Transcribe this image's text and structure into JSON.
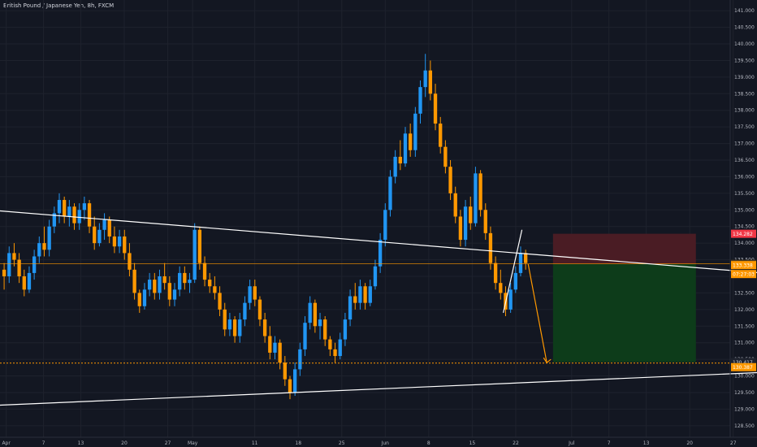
{
  "header": {
    "title": "British Pound / Japanese Yen, 8h, FXCM"
  },
  "chart_data": {
    "type": "candlestick",
    "symbol": "British Pound / Japanese Yen, 8h, FXCM",
    "ylim": [
      128.3,
      141.2
    ],
    "y_ticks": [
      "128.500",
      "129.000",
      "129.500",
      "130.000",
      "130.500",
      "131.000",
      "131.500",
      "132.000",
      "132.500",
      "133.000",
      "133.500",
      "134.000",
      "134.500",
      "135.000",
      "135.500",
      "136.000",
      "136.500",
      "137.000",
      "137.500",
      "138.000",
      "138.500",
      "139.000",
      "139.500",
      "140.000",
      "140.500",
      "141.000"
    ],
    "x_ticks": [
      "Apr",
      "7",
      "13",
      "20",
      "27",
      "May",
      "11",
      "18",
      "25",
      "Jun",
      "8",
      "15",
      "22",
      "Jul",
      "7",
      "13",
      "20",
      "27"
    ],
    "price_labels": {
      "stop_loss": "134.282",
      "current_price": "133.338",
      "countdown": "07:27:03",
      "entry_line": "133.374",
      "target": "130.417",
      "target_line": "130.387"
    },
    "colors": {
      "up": "#2196f3",
      "down": "#ff9800",
      "stop_zone": "#4a1c24",
      "target_zone": "#0d3c1a",
      "trendline": "#ffffff",
      "projection": "#ff9800",
      "price_line": "#ff9800"
    },
    "trendlines": [
      {
        "name": "descending-resistance",
        "from": {
          "date": "2020-03-31",
          "price": 134.97
        },
        "to": {
          "date": "2020-07-31",
          "price": 133.11
        }
      },
      {
        "name": "ascending-support",
        "from": {
          "date": "2020-03-31",
          "price": 129.12
        },
        "to": {
          "date": "2020-07-31",
          "price": 130.1
        }
      },
      {
        "name": "rising-wedge-edge",
        "from": {
          "date": "2020-06-20",
          "price": 131.9
        },
        "to": {
          "date": "2020-06-23",
          "price": 134.4
        }
      }
    ],
    "projection": [
      {
        "date": "2020-06-24",
        "price": 133.37
      },
      {
        "date": "2020-06-27",
        "price": 130.4
      }
    ],
    "position": {
      "entry": 133.374,
      "stop": 134.282,
      "target": 130.417,
      "start": "2020-06-28",
      "end": "2020-07-21"
    },
    "series": [
      {
        "values": [
          [
            133.2,
            133.4,
            132.6,
            133.0
          ],
          [
            133.0,
            133.9,
            132.8,
            133.7
          ],
          [
            133.7,
            134.0,
            133.3,
            133.5
          ],
          [
            133.5,
            133.7,
            132.8,
            133.0
          ],
          [
            133.0,
            133.2,
            132.4,
            132.6
          ],
          [
            132.6,
            133.3,
            132.5,
            133.1
          ],
          [
            133.1,
            133.8,
            132.9,
            133.6
          ],
          [
            133.6,
            134.2,
            133.4,
            134.0
          ],
          [
            134.0,
            134.5,
            133.6,
            133.8
          ],
          [
            133.8,
            134.7,
            133.6,
            134.5
          ],
          [
            134.5,
            135.1,
            134.3,
            134.9
          ],
          [
            134.9,
            135.5,
            134.6,
            135.3
          ],
          [
            135.3,
            135.4,
            134.6,
            134.8
          ],
          [
            134.8,
            135.3,
            134.5,
            135.1
          ],
          [
            135.1,
            135.2,
            134.4,
            134.6
          ],
          [
            134.6,
            135.2,
            134.4,
            135.0
          ],
          [
            135.0,
            135.4,
            134.7,
            135.2
          ],
          [
            135.2,
            135.3,
            134.3,
            134.5
          ],
          [
            134.5,
            134.8,
            133.8,
            134.0
          ],
          [
            134.0,
            134.6,
            133.9,
            134.4
          ],
          [
            134.4,
            134.9,
            134.1,
            134.7
          ],
          [
            134.7,
            134.8,
            134.0,
            134.2
          ],
          [
            134.2,
            134.5,
            133.7,
            133.9
          ],
          [
            133.9,
            134.4,
            133.7,
            134.2
          ],
          [
            134.2,
            134.4,
            133.5,
            133.7
          ],
          [
            133.7,
            134.0,
            133.0,
            133.2
          ],
          [
            133.2,
            133.4,
            132.3,
            132.5
          ],
          [
            132.5,
            132.6,
            131.9,
            132.1
          ],
          [
            132.1,
            132.8,
            132.0,
            132.6
          ],
          [
            132.6,
            133.1,
            132.4,
            132.9
          ],
          [
            132.9,
            133.1,
            132.3,
            132.5
          ],
          [
            132.5,
            133.2,
            132.3,
            133.0
          ],
          [
            133.0,
            133.4,
            132.6,
            132.8
          ],
          [
            132.8,
            133.0,
            132.1,
            132.3
          ],
          [
            132.3,
            132.8,
            132.1,
            132.6
          ],
          [
            132.6,
            133.3,
            132.4,
            133.1
          ],
          [
            133.1,
            133.3,
            132.6,
            132.8
          ],
          [
            132.8,
            133.1,
            132.5,
            132.9
          ],
          [
            132.9,
            134.6,
            132.8,
            134.4
          ],
          [
            134.4,
            134.5,
            133.2,
            133.4
          ],
          [
            133.4,
            133.6,
            132.7,
            132.9
          ],
          [
            132.9,
            133.1,
            132.5,
            132.7
          ],
          [
            132.7,
            133.0,
            132.3,
            132.5
          ],
          [
            132.5,
            132.7,
            131.8,
            132.0
          ],
          [
            132.0,
            132.2,
            131.2,
            131.4
          ],
          [
            131.4,
            131.9,
            131.2,
            131.7
          ],
          [
            131.7,
            131.8,
            131.0,
            131.2
          ],
          [
            131.2,
            131.9,
            131.0,
            131.7
          ],
          [
            131.7,
            132.4,
            131.5,
            132.2
          ],
          [
            132.2,
            132.9,
            132.0,
            132.7
          ],
          [
            132.7,
            132.9,
            132.1,
            132.3
          ],
          [
            132.3,
            132.4,
            131.5,
            131.7
          ],
          [
            131.7,
            131.9,
            131.0,
            131.2
          ],
          [
            131.2,
            131.5,
            130.5,
            130.7
          ],
          [
            130.7,
            131.2,
            130.5,
            131.0
          ],
          [
            131.0,
            131.1,
            130.2,
            130.4
          ],
          [
            130.4,
            130.6,
            129.7,
            129.9
          ],
          [
            129.9,
            130.0,
            129.3,
            129.5
          ],
          [
            129.5,
            130.4,
            129.4,
            130.2
          ],
          [
            130.2,
            131.0,
            130.0,
            130.8
          ],
          [
            130.8,
            131.8,
            130.6,
            131.6
          ],
          [
            131.6,
            132.4,
            131.4,
            132.2
          ],
          [
            132.2,
            132.3,
            131.3,
            131.5
          ],
          [
            131.5,
            131.9,
            131.1,
            131.7
          ],
          [
            131.7,
            131.8,
            130.9,
            131.1
          ],
          [
            131.1,
            131.2,
            130.6,
            130.8
          ],
          [
            130.8,
            131.0,
            130.4,
            130.6
          ],
          [
            130.6,
            131.3,
            130.5,
            131.1
          ],
          [
            131.1,
            131.9,
            130.9,
            131.7
          ],
          [
            131.7,
            132.6,
            131.5,
            132.4
          ],
          [
            132.4,
            132.8,
            132.0,
            132.2
          ],
          [
            132.2,
            132.9,
            132.0,
            132.7
          ],
          [
            132.7,
            132.8,
            132.0,
            132.2
          ],
          [
            132.2,
            132.9,
            132.1,
            132.7
          ],
          [
            132.7,
            133.5,
            132.6,
            133.3
          ],
          [
            133.3,
            134.3,
            133.1,
            134.1
          ],
          [
            134.1,
            135.2,
            133.9,
            135.0
          ],
          [
            135.0,
            136.2,
            134.8,
            136.0
          ],
          [
            136.0,
            136.8,
            135.8,
            136.6
          ],
          [
            136.6,
            137.1,
            136.2,
            136.4
          ],
          [
            136.4,
            137.5,
            136.3,
            137.3
          ],
          [
            137.3,
            137.6,
            136.6,
            136.8
          ],
          [
            136.8,
            138.1,
            136.6,
            137.9
          ],
          [
            137.9,
            138.9,
            137.6,
            138.7
          ],
          [
            138.7,
            139.7,
            138.4,
            139.2
          ],
          [
            139.2,
            139.5,
            138.3,
            138.5
          ],
          [
            138.5,
            138.8,
            137.4,
            137.6
          ],
          [
            137.6,
            137.8,
            136.7,
            136.9
          ],
          [
            136.9,
            137.1,
            136.1,
            136.3
          ],
          [
            136.3,
            136.5,
            135.3,
            135.5
          ],
          [
            135.5,
            135.7,
            134.6,
            134.8
          ],
          [
            134.8,
            135.0,
            133.9,
            134.1
          ],
          [
            134.1,
            135.3,
            133.9,
            135.1
          ],
          [
            135.1,
            135.4,
            134.4,
            134.6
          ],
          [
            134.6,
            136.3,
            134.5,
            136.1
          ],
          [
            136.1,
            136.2,
            134.8,
            135.0
          ],
          [
            135.0,
            135.2,
            134.1,
            134.3
          ],
          [
            134.3,
            134.5,
            133.2,
            133.4
          ],
          [
            133.4,
            133.6,
            132.6,
            132.8
          ],
          [
            132.8,
            133.2,
            132.3,
            132.5
          ],
          [
            132.5,
            132.7,
            131.8,
            132.0
          ],
          [
            132.0,
            132.8,
            131.9,
            132.6
          ],
          [
            132.6,
            133.3,
            132.5,
            133.1
          ],
          [
            133.1,
            133.9,
            133.0,
            133.7
          ],
          [
            133.7,
            133.8,
            133.2,
            133.4
          ]
        ]
      }
    ]
  }
}
